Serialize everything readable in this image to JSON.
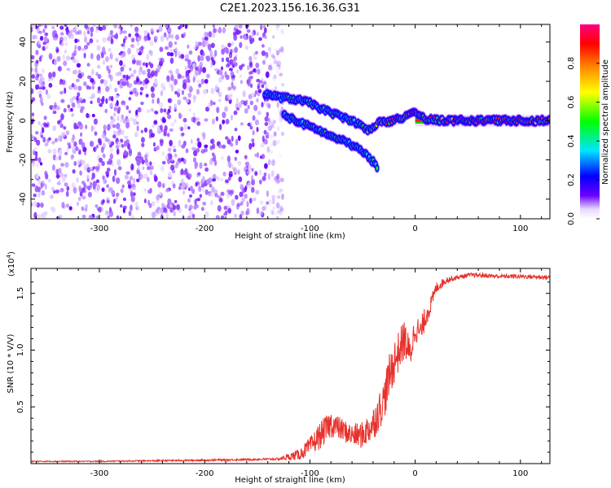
{
  "title": "C2E1.2023.156.16.36.G31",
  "chart_data": [
    {
      "type": "heatmap",
      "title": "C2E1.2023.156.16.36.G31",
      "xlabel": "Height of straight line (km)",
      "ylabel": "Frequency (Hz)",
      "xlim": [
        -365,
        128
      ],
      "ylim": [
        -50,
        49
      ],
      "x_ticks": [
        -300,
        -200,
        -100,
        0,
        100
      ],
      "x_tick_labels": [
        "-300",
        "-200",
        "-100",
        "0",
        "100"
      ],
      "y_ticks": [
        -40,
        -20,
        0,
        20,
        40
      ],
      "y_tick_labels": [
        "-40",
        "-20",
        "0",
        "20",
        "40"
      ],
      "colorbar": {
        "label": "Normalized spectral amplitude",
        "range": [
          0,
          1
        ],
        "ticks": [
          0.0,
          0.2,
          0.4,
          0.6,
          0.8
        ],
        "tick_labels": [
          "0.0",
          "0.2",
          "0.4",
          "0.6",
          "0.8"
        ],
        "colors": [
          "#e6d8ff",
          "#6a00ff",
          "#0000ff",
          "#00e5ff",
          "#00ff00",
          "#ffff00",
          "#ff8800",
          "#ff0000",
          "#ff0080"
        ]
      },
      "noise_region_x": [
        -365,
        -125
      ],
      "tracks": [
        {
          "name": "upper branch",
          "points": [
            [
              -143,
              14
            ],
            [
              -130,
              12
            ],
            [
              -115,
              11
            ],
            [
              -100,
              9
            ],
            [
              -85,
              5
            ],
            [
              -70,
              2
            ],
            [
              -60,
              0
            ],
            [
              -50,
              -3
            ],
            [
              -45,
              -5
            ]
          ]
        },
        {
          "name": "lower branch",
          "points": [
            [
              -125,
              3
            ],
            [
              -110,
              -1
            ],
            [
              -95,
              -4
            ],
            [
              -80,
              -8
            ],
            [
              -65,
              -11
            ],
            [
              -55,
              -14
            ],
            [
              -45,
              -18
            ],
            [
              -35,
              -24
            ]
          ]
        },
        {
          "name": "carrier",
          "points": [
            [
              -45,
              -5
            ],
            [
              -35,
              -1
            ],
            [
              -20,
              0
            ],
            [
              -10,
              2
            ],
            [
              0,
              4
            ],
            [
              10,
              1
            ],
            [
              30,
              0
            ],
            [
              60,
              0
            ],
            [
              90,
              0
            ],
            [
              128,
              0
            ]
          ]
        }
      ]
    },
    {
      "type": "line",
      "xlabel": "Height of straight line (km)",
      "ylabel": "SNR (10 * V/V)",
      "y_multiplier_label": "(x10",
      "y_multiplier_exp": "4",
      "xlim": [
        -365,
        128
      ],
      "ylim": [
        0,
        1.72
      ],
      "x_ticks": [
        -300,
        -200,
        -100,
        0,
        100
      ],
      "x_tick_labels": [
        "-300",
        "-200",
        "-100",
        "0",
        "100"
      ],
      "y_ticks": [
        0.5,
        1.0,
        1.5
      ],
      "y_tick_labels": [
        "0.5",
        "1.0",
        "1.5"
      ],
      "line_color": "#e8302a",
      "x": [
        -365,
        -300,
        -200,
        -130,
        -110,
        -100,
        -90,
        -80,
        -70,
        -60,
        -50,
        -40,
        -30,
        -25,
        -20,
        -15,
        -10,
        -5,
        0,
        5,
        10,
        15,
        20,
        30,
        40,
        50,
        60,
        80,
        100,
        128
      ],
      "y": [
        0.02,
        0.02,
        0.03,
        0.04,
        0.08,
        0.15,
        0.25,
        0.35,
        0.3,
        0.25,
        0.25,
        0.35,
        0.55,
        0.75,
        0.9,
        1.0,
        1.1,
        0.95,
        1.2,
        1.15,
        1.3,
        1.4,
        1.55,
        1.62,
        1.64,
        1.66,
        1.66,
        1.65,
        1.65,
        1.64
      ],
      "noise": [
        0.005,
        0.005,
        0.008,
        0.01,
        0.05,
        0.08,
        0.12,
        0.12,
        0.1,
        0.1,
        0.12,
        0.15,
        0.18,
        0.2,
        0.2,
        0.18,
        0.18,
        0.15,
        0.12,
        0.12,
        0.1,
        0.08,
        0.05,
        0.03,
        0.02,
        0.02,
        0.02,
        0.02,
        0.02,
        0.02
      ]
    }
  ]
}
